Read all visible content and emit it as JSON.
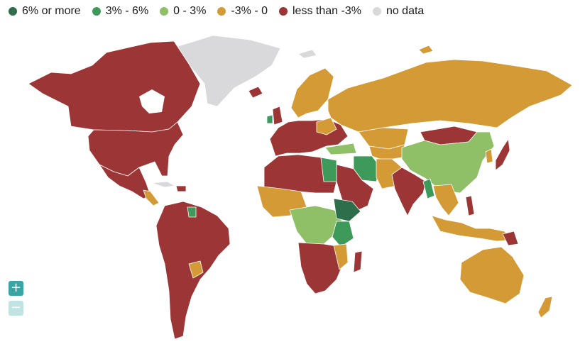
{
  "legend": {
    "items": [
      {
        "label": "6% or more",
        "color": "#2f6e4a"
      },
      {
        "label": "3% - 6%",
        "color": "#3d9a5b"
      },
      {
        "label": "0 - 3%",
        "color": "#8fbf66"
      },
      {
        "label": "-3% - 0",
        "color": "#d49a35"
      },
      {
        "label": "less than -3%",
        "color": "#9c3535"
      },
      {
        "label": "no data",
        "color": "#d9d9db"
      }
    ]
  },
  "controls": {
    "zoom_in_label": "+",
    "zoom_out_label": "−"
  }
}
